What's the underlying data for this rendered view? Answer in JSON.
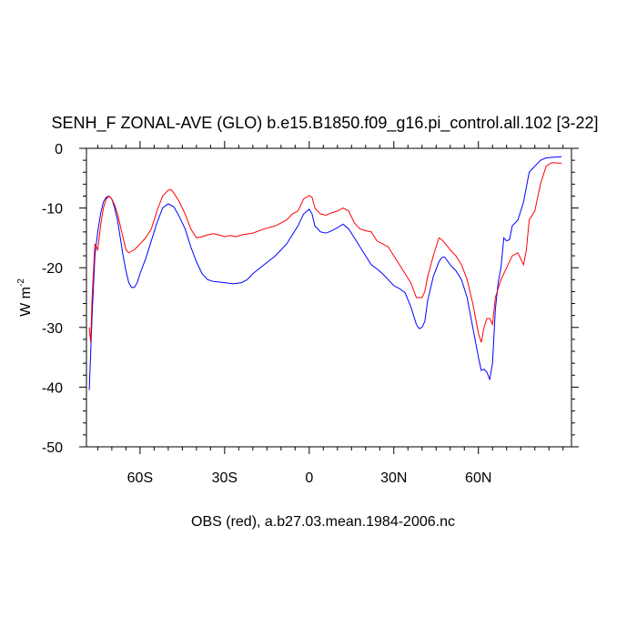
{
  "chart_data": {
    "type": "line",
    "title": "SENH_F ZONAL-AVE (GLO) b.e15.B1850.f09_g16.pi_control.all.102 [3-22]",
    "y_label": "W m",
    "y_label_superscript": "-2",
    "x_label": "OBS (red), a.b27.03.mean.1984-2006.nc",
    "xlim": [
      -79,
      93
    ],
    "ylim": [
      -50,
      0
    ],
    "xticks": [
      {
        "value": -60,
        "label": "60S"
      },
      {
        "value": -30,
        "label": "30S"
      },
      0,
      {
        "value": 30,
        "label": "30N"
      },
      {
        "value": 60,
        "label": "60N"
      }
    ],
    "xminorticks": [
      -75,
      -70,
      -65,
      -55,
      -50,
      -45,
      -40,
      -35,
      -25,
      -20,
      -15,
      -10,
      -5,
      5,
      10,
      15,
      20,
      25,
      35,
      40,
      45,
      50,
      55,
      65,
      70,
      75,
      80,
      85,
      90
    ],
    "yticks": [
      -50,
      -40,
      -30,
      -20,
      -10,
      0
    ],
    "yminorticks": [
      -48,
      -46,
      -44,
      -42,
      -38,
      -36,
      -34,
      -32,
      -28,
      -26,
      -24,
      -22,
      -18,
      -16,
      -14,
      -12,
      -8,
      -6,
      -4,
      -2
    ],
    "series": [
      {
        "color": "#0000ff",
        "x": [
          -78,
          -77,
          -76,
          -75,
          -74,
          -73,
          -72,
          -71,
          -70,
          -69,
          -68,
          -67,
          -66,
          -65,
          -64,
          -63,
          -62,
          -61,
          -60,
          -58,
          -56,
          -54,
          -52,
          -50,
          -48,
          -46,
          -44,
          -42,
          -40,
          -38,
          -36,
          -34,
          -30,
          -27,
          -24,
          -22,
          -20,
          -16,
          -12,
          -8,
          -6,
          -4,
          -2,
          0,
          1,
          2,
          4,
          6,
          8,
          10,
          12,
          14,
          16,
          18,
          20,
          22,
          24,
          26,
          28,
          30,
          32,
          34,
          36,
          38,
          39,
          40,
          41,
          42,
          44,
          46,
          47,
          48,
          50,
          52,
          54,
          56,
          58,
          60,
          61,
          62,
          63,
          64,
          65,
          66,
          67,
          68,
          69,
          70,
          71,
          72,
          74,
          76,
          78,
          80,
          82,
          84,
          86,
          89.5
        ],
        "values": [
          -40.5,
          -28,
          -18,
          -14,
          -11,
          -9,
          -8.2,
          -8,
          -8.5,
          -10,
          -12,
          -15,
          -18,
          -20.5,
          -22.5,
          -23.3,
          -23.3,
          -22.5,
          -21,
          -18.5,
          -15.5,
          -12.5,
          -10,
          -9.3,
          -9.8,
          -11.5,
          -13.5,
          -16.5,
          -19,
          -21,
          -22,
          -22.3,
          -22.5,
          -22.7,
          -22.5,
          -22,
          -21,
          -19.5,
          -18,
          -16,
          -14.5,
          -13,
          -11,
          -10.2,
          -11,
          -13,
          -14,
          -14.2,
          -13.8,
          -13.3,
          -12.7,
          -13.5,
          -15,
          -16.5,
          -18,
          -19.5,
          -20.2,
          -21,
          -22,
          -23,
          -23.5,
          -24.2,
          -26.5,
          -29.5,
          -30.2,
          -30,
          -29,
          -25.5,
          -21.5,
          -19,
          -18.3,
          -18.2,
          -19.5,
          -20.5,
          -22,
          -25,
          -30,
          -35,
          -37.2,
          -37,
          -37.5,
          -38.7,
          -36,
          -27,
          -22.5,
          -20,
          -15,
          -15.5,
          -15.3,
          -13,
          -12,
          -9,
          -4,
          -3,
          -2,
          -1.6,
          -1.5,
          -1.4
        ]
      },
      {
        "color": "#ff0000",
        "x": [
          -78,
          -77.5,
          -77,
          -76,
          -75,
          -74,
          -73,
          -72,
          -71,
          -70,
          -69,
          -68,
          -67,
          -66,
          -65,
          -64,
          -62,
          -60,
          -58,
          -56,
          -54,
          -52,
          -50,
          -49,
          -48,
          -46,
          -44,
          -42,
          -40,
          -38,
          -36,
          -34,
          -32,
          -30,
          -28,
          -26,
          -24,
          -20,
          -16,
          -12,
          -8,
          -6,
          -4,
          -2,
          0,
          1,
          2,
          4,
          6,
          8,
          10,
          12,
          14,
          16,
          18,
          20,
          22,
          24,
          26,
          28,
          30,
          32,
          34,
          36,
          38,
          40,
          41,
          42,
          44,
          46,
          47,
          48,
          50,
          52,
          54,
          56,
          58,
          60,
          61,
          62,
          63,
          64,
          65,
          66,
          68,
          70,
          72,
          74,
          76,
          77,
          78,
          80,
          82,
          84,
          86,
          89.5
        ],
        "values": [
          -30,
          -32.5,
          -25,
          -16,
          -17,
          -13,
          -10,
          -8.5,
          -8,
          -8.5,
          -9.5,
          -11,
          -13,
          -15,
          -17,
          -17.5,
          -17,
          -16,
          -15,
          -13.5,
          -10.5,
          -8,
          -7,
          -6.9,
          -7.5,
          -9,
          -11,
          -13.5,
          -15,
          -14.8,
          -14.5,
          -14.3,
          -14.5,
          -14.8,
          -14.6,
          -14.8,
          -14.5,
          -14.2,
          -13.5,
          -13,
          -12,
          -11,
          -10.5,
          -8.5,
          -7.9,
          -8.2,
          -10,
          -11,
          -11.2,
          -10.8,
          -10.5,
          -10,
          -10.5,
          -12.5,
          -13.5,
          -13.8,
          -14,
          -15.5,
          -16,
          -16.5,
          -18,
          -19.5,
          -21,
          -22.5,
          -25,
          -25,
          -24,
          -21.5,
          -18,
          -15,
          -15.3,
          -15.8,
          -17,
          -18,
          -19.5,
          -22,
          -26,
          -31,
          -32.5,
          -30,
          -28.5,
          -28.5,
          -29.5,
          -25,
          -22,
          -20,
          -18,
          -17.5,
          -19.5,
          -17,
          -12,
          -10.5,
          -6,
          -3,
          -2.4,
          -2.5
        ]
      }
    ]
  }
}
